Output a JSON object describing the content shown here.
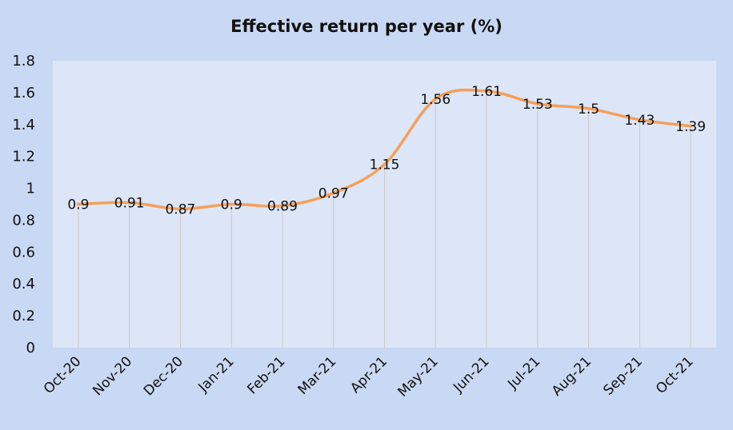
{
  "chart_data": {
    "type": "line",
    "title": "Effective return per year (%)",
    "xlabel": "",
    "ylabel": "",
    "categories": [
      "Oct-20",
      "Nov-20",
      "Dec-20",
      "Jan-21",
      "Feb-21",
      "Mar-21",
      "Apr-21",
      "May-21",
      "Jun-21",
      "Jul-21",
      "Aug-21",
      "Sep-21",
      "Oct-21"
    ],
    "series": [
      {
        "values": [
          0.9,
          0.91,
          0.87,
          0.9,
          0.89,
          0.97,
          1.15,
          1.56,
          1.61,
          1.53,
          1.5,
          1.43,
          1.39
        ],
        "data_labels": [
          "0.9",
          "0.91",
          "0.87",
          "0.9",
          "0.89",
          "0.97",
          "1.15",
          "1.56",
          "1.61",
          "1.53",
          "1.5",
          "1.43",
          "1.39"
        ],
        "color": "#f4a05a"
      }
    ],
    "ylim": [
      0,
      1.8
    ],
    "y_ticks": [
      "0",
      "0.2",
      "0.4",
      "0.6",
      "0.8",
      "1",
      "1.2",
      "1.4",
      "1.6",
      "1.8"
    ],
    "grid": false,
    "drop_lines": true,
    "smooth": true,
    "legend": "none"
  },
  "colors": {
    "background": "#c9d8f3",
    "plot_area": "#dde6f7",
    "drop_line": "#c8c8c8"
  }
}
